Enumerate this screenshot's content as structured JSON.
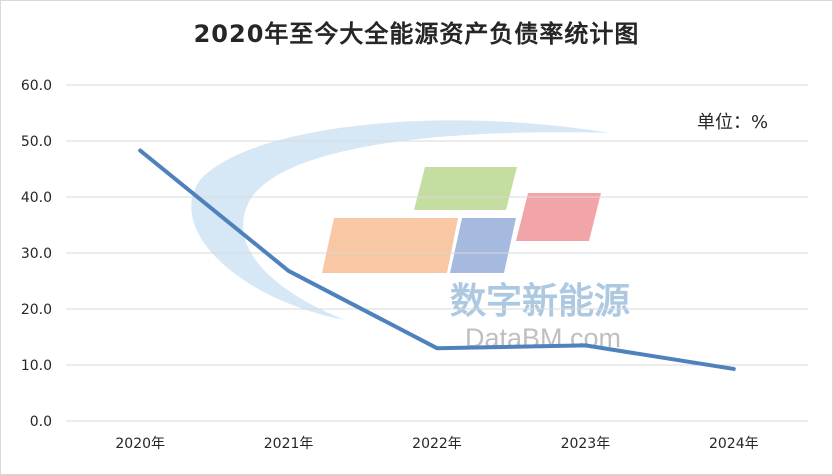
{
  "chart_data": {
    "type": "line",
    "title": "2020年至今大全能源资产负债率统计图",
    "unit_label": "单位：%",
    "categories": [
      "2020年",
      "2021年",
      "2022年",
      "2023年",
      "2024年"
    ],
    "series": [
      {
        "values": [
          48.3,
          26.8,
          13.0,
          13.5,
          9.3
        ],
        "color": "#4f81bd"
      }
    ],
    "yticks": [
      "0.0",
      "10.0",
      "20.0",
      "30.0",
      "40.0",
      "50.0",
      "60.0"
    ],
    "ylim": [
      0,
      60
    ],
    "grid": true,
    "legend": "none"
  },
  "watermark": {
    "text_cn": "数字新能源",
    "text_en": "DataBM.com"
  }
}
